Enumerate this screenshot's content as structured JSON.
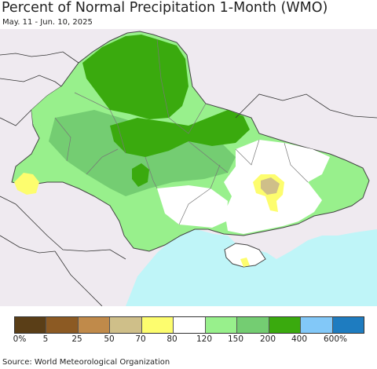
{
  "header": {
    "title": "Percent of Normal Precipitation 1-Month (WMO)",
    "subtitle": "May. 11 - Jun. 10, 2025"
  },
  "legend": {
    "colors": [
      "#5a3e17",
      "#8c5a23",
      "#c08a4a",
      "#cfbf89",
      "#fdfd6e",
      "#ffffff",
      "#98f08c",
      "#74cd72",
      "#3aaa0e",
      "#82c8f8",
      "#1e7cc0"
    ],
    "labels": [
      "0%",
      "5",
      "25",
      "50",
      "70",
      "80",
      "120",
      "150",
      "200",
      "400",
      "600%"
    ]
  },
  "map_colors": {
    "outside": "#efeaf0",
    "sea": "#bff5f8",
    "normal": "#ffffff",
    "above_light": "#98f08c",
    "above_mid": "#74cd72",
    "above_high": "#3aaa0e",
    "dry": "#fdfd6e",
    "very_dry": "#cfbf89"
  },
  "footer": {
    "source": "Source: World Meteorological Organization"
  }
}
